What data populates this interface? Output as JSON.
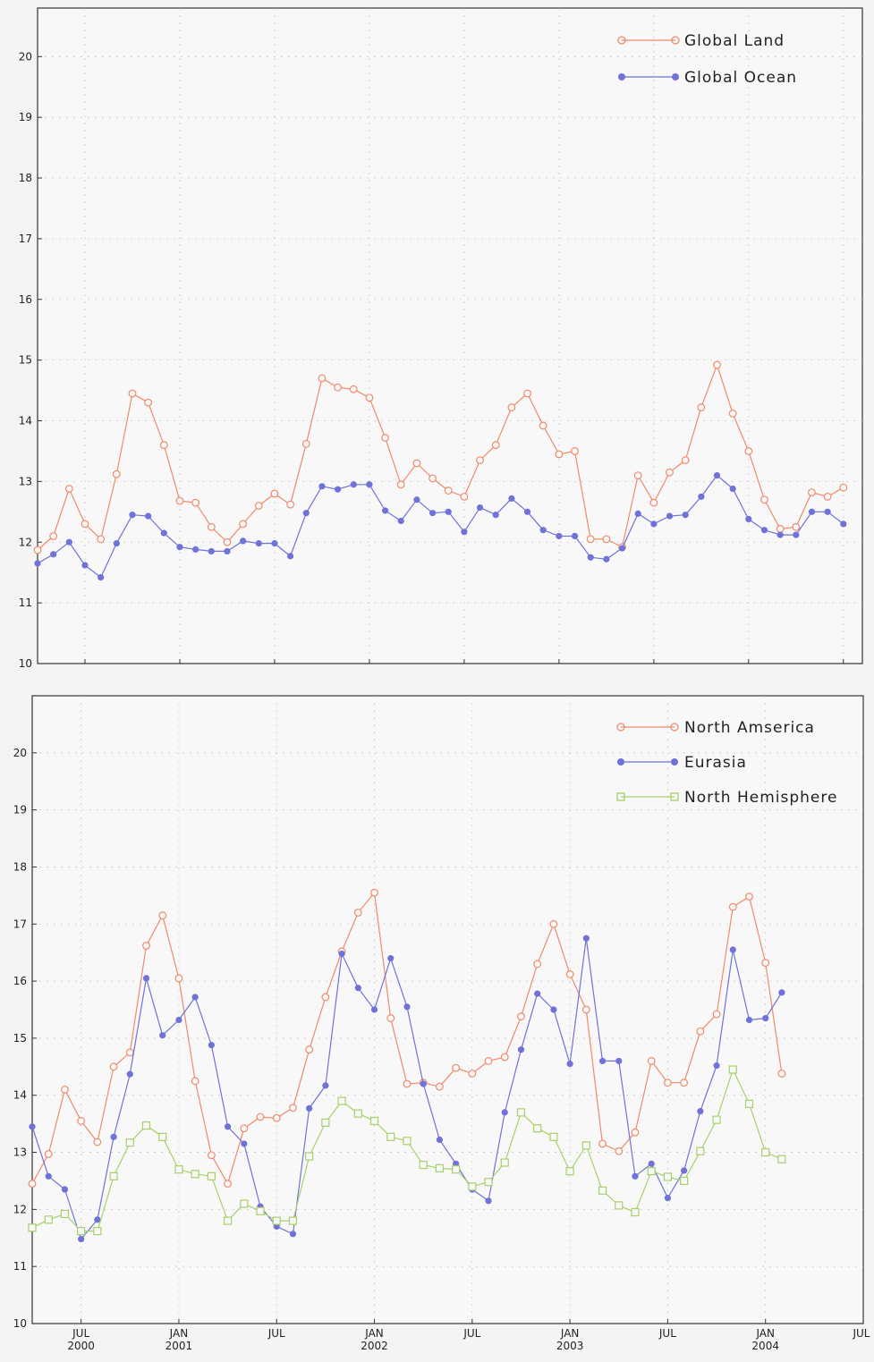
{
  "chart_data": [
    {
      "type": "line",
      "title": "",
      "xlabel": "",
      "ylabel": "",
      "x_start": "2000-04",
      "ylim": [
        10,
        20.8
      ],
      "yticks": [
        10,
        11,
        12,
        13,
        14,
        15,
        16,
        17,
        18,
        19,
        20
      ],
      "grid": true,
      "legend_position": "top-right",
      "series": [
        {
          "name": "Global Land",
          "color": "#f08a6a",
          "marker": "open-circle",
          "values": [
            11.87,
            12.1,
            12.88,
            12.3,
            12.05,
            13.12,
            14.45,
            14.3,
            13.6,
            12.68,
            12.65,
            12.25,
            12.0,
            12.3,
            12.6,
            12.8,
            12.62,
            13.62,
            14.7,
            14.55,
            14.52,
            14.38,
            13.72,
            12.95,
            13.3,
            13.05,
            12.85,
            12.75,
            13.35,
            13.6,
            14.22,
            14.45,
            13.92,
            13.45,
            13.5,
            12.05,
            12.05,
            11.92,
            13.1,
            12.65,
            13.15,
            13.35,
            14.22,
            14.92,
            14.12,
            13.5,
            12.7,
            12.22,
            12.25,
            12.82,
            12.75,
            12.9
          ]
        },
        {
          "name": "Global Ocean",
          "color": "#6f72d8",
          "marker": "filled-circle",
          "values": [
            11.65,
            11.8,
            12.0,
            11.62,
            11.42,
            11.98,
            12.45,
            12.43,
            12.15,
            11.92,
            11.88,
            11.85,
            11.85,
            12.02,
            11.98,
            11.98,
            11.77,
            12.48,
            12.92,
            12.87,
            12.95,
            12.95,
            12.52,
            12.35,
            12.7,
            12.48,
            12.5,
            12.17,
            12.57,
            12.45,
            12.72,
            12.5,
            12.2,
            12.1,
            12.1,
            11.75,
            11.72,
            11.9,
            12.47,
            12.3,
            12.43,
            12.45,
            12.75,
            13.1,
            12.88,
            12.38,
            12.2,
            12.12,
            12.12,
            12.5,
            12.5,
            12.3
          ]
        }
      ]
    },
    {
      "type": "line",
      "title": "",
      "xlabel": "",
      "ylabel": "",
      "x_start": "2000-04",
      "x_tick_labels": [
        {
          "date": "2000-07",
          "label": "JUL",
          "year": "2000"
        },
        {
          "date": "2001-01",
          "label": "JAN",
          "year": "2001"
        },
        {
          "date": "2001-07",
          "label": "JUL",
          "year": ""
        },
        {
          "date": "2002-01",
          "label": "JAN",
          "year": "2002"
        },
        {
          "date": "2002-07",
          "label": "JUL",
          "year": ""
        },
        {
          "date": "2003-01",
          "label": "JAN",
          "year": "2003"
        },
        {
          "date": "2003-07",
          "label": "JUL",
          "year": ""
        },
        {
          "date": "2004-01",
          "label": "JAN",
          "year": "2004"
        },
        {
          "date": "2004-07",
          "label": "JUL",
          "year": ""
        }
      ],
      "ylim": [
        10,
        21
      ],
      "yticks": [
        10,
        11,
        12,
        13,
        14,
        15,
        16,
        17,
        18,
        19,
        20
      ],
      "grid": true,
      "legend_position": "top-right",
      "series": [
        {
          "name": "North Amserica",
          "color": "#f08a6a",
          "marker": "open-circle",
          "values": [
            12.45,
            12.97,
            14.1,
            13.55,
            13.18,
            14.5,
            14.75,
            16.62,
            17.15,
            16.05,
            14.25,
            12.95,
            12.45,
            13.42,
            13.62,
            13.6,
            13.78,
            14.8,
            15.72,
            16.52,
            17.2,
            17.55,
            15.35,
            14.2,
            14.22,
            14.15,
            14.48,
            14.38,
            14.6,
            14.67,
            15.38,
            16.3,
            17.0,
            16.12,
            15.5,
            13.15,
            13.02,
            13.35,
            14.6,
            14.22,
            14.22,
            15.12,
            15.42,
            17.3,
            17.48,
            16.32,
            14.38
          ]
        },
        {
          "name": "Eurasia",
          "color": "#6f72d8",
          "marker": "filled-circle",
          "values": [
            13.45,
            12.58,
            12.35,
            11.48,
            11.82,
            13.27,
            14.37,
            16.05,
            15.05,
            15.32,
            15.72,
            14.88,
            13.45,
            13.15,
            12.05,
            11.7,
            11.57,
            13.77,
            14.17,
            16.48,
            15.88,
            15.5,
            16.4,
            15.55,
            14.2,
            13.22,
            12.8,
            12.35,
            12.15,
            13.7,
            14.8,
            15.78,
            15.5,
            14.55,
            16.75,
            14.6,
            14.6,
            12.58,
            12.8,
            12.2,
            12.68,
            13.72,
            14.52,
            16.55,
            15.32,
            15.35,
            15.8
          ]
        },
        {
          "name": "North Hemisphere",
          "color": "#a6d16a",
          "marker": "open-square",
          "values": [
            11.68,
            11.82,
            11.92,
            11.62,
            11.62,
            12.58,
            13.17,
            13.47,
            13.27,
            12.7,
            12.62,
            12.58,
            11.8,
            12.1,
            11.97,
            11.8,
            11.8,
            12.93,
            13.52,
            13.9,
            13.68,
            13.55,
            13.27,
            13.2,
            12.78,
            12.72,
            12.7,
            12.4,
            12.48,
            12.82,
            13.7,
            13.42,
            13.27,
            12.67,
            13.12,
            12.33,
            12.07,
            11.95,
            12.67,
            12.57,
            12.5,
            13.02,
            13.57,
            14.45,
            13.85,
            13.0,
            12.88
          ]
        }
      ]
    }
  ]
}
